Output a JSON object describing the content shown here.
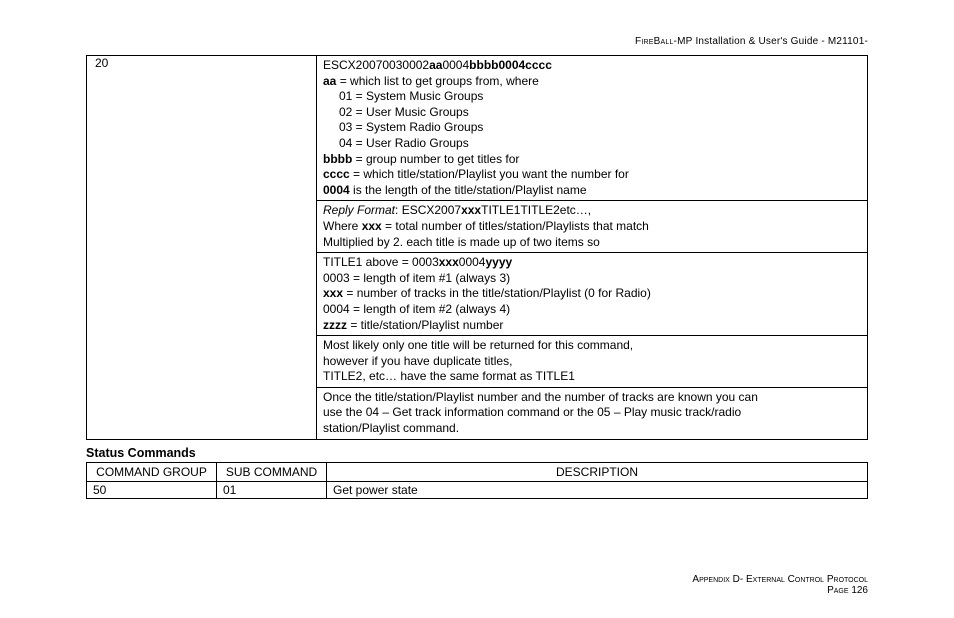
{
  "header": {
    "product": "FireBall-MP",
    "text_mid": " Installation & User's Guide - ",
    "code": "M21101-"
  },
  "table1": {
    "col1_width": 230,
    "row_cg": "20",
    "blocks": [
      {
        "lines": [
          {
            "segments": [
              {
                "t": "ESCX20070030002"
              },
              {
                "t": "aa",
                "b": true
              },
              {
                "t": "0004"
              },
              {
                "t": "bbbb0004cccc",
                "b": true
              }
            ]
          },
          {
            "segments": [
              {
                "t": "aa",
                "b": true
              },
              {
                "t": " = which list to get groups from, where"
              }
            ]
          },
          {
            "indent": 2,
            "segments": [
              {
                "t": "01 = System Music Groups"
              }
            ]
          },
          {
            "indent": 2,
            "segments": [
              {
                "t": "02 = User Music Groups"
              }
            ]
          },
          {
            "indent": 2,
            "segments": [
              {
                "t": "03 = System Radio Groups"
              }
            ]
          },
          {
            "indent": 2,
            "segments": [
              {
                "t": "04 = User Radio Groups"
              }
            ]
          },
          {
            "segments": [
              {
                "t": "bbbb",
                "b": true
              },
              {
                "t": " = group number to get titles for"
              }
            ]
          },
          {
            "segments": [
              {
                "t": "cccc",
                "b": true
              },
              {
                "t": " = which title/station/Playlist you want the number for"
              }
            ]
          },
          {
            "segments": [
              {
                "t": "0004",
                "b": true
              },
              {
                "t": " is the length of the title/station/Playlist name"
              }
            ]
          }
        ]
      },
      {
        "lines": [
          {
            "segments": [
              {
                "t": "Reply Format",
                "i": true
              },
              {
                "t": ": ESCX2007"
              },
              {
                "t": "xxx",
                "b": true
              },
              {
                "t": "TITLE1TITLE2etc…,"
              }
            ]
          },
          {
            "segments": [
              {
                "t": "Where "
              },
              {
                "t": "xxx",
                "b": true
              },
              {
                "t": " = total number of titles/station/Playlists that match"
              }
            ]
          },
          {
            "segments": [
              {
                "t": "Multiplied by 2.  each title is made up of two items so"
              }
            ]
          }
        ]
      },
      {
        "lines": [
          {
            "segments": [
              {
                "t": "TITLE1 above = 0003"
              },
              {
                "t": "xxx",
                "b": true
              },
              {
                "t": "0004"
              },
              {
                "t": "yyyy",
                "b": true
              }
            ]
          },
          {
            "segments": [
              {
                "t": "0003 = length of item #1 (always 3)"
              }
            ]
          },
          {
            "segments": [
              {
                "t": "xxx",
                "b": true
              },
              {
                "t": "  = number of tracks in the title/station/Playlist (0 for Radio)"
              }
            ]
          },
          {
            "segments": [
              {
                "t": "0004 = length of item #2 (always 4)"
              }
            ]
          },
          {
            "segments": [
              {
                "t": "zzzz",
                "b": true
              },
              {
                "t": " = title/station/Playlist number"
              }
            ]
          }
        ]
      },
      {
        "lines": [
          {
            "segments": [
              {
                "t": "Most likely only one title will be returned for this command,"
              }
            ]
          },
          {
            "segments": [
              {
                "t": "however if you have duplicate titles,"
              }
            ]
          },
          {
            "segments": [
              {
                "t": "TITLE2, etc… have the same format as TITLE1"
              }
            ]
          }
        ]
      },
      {
        "lines": [
          {
            "segments": [
              {
                "t": "Once the title/station/Playlist number and the number of tracks are known you can"
              }
            ]
          },
          {
            "segments": [
              {
                "t": "use the 04 – Get track information command or the 05 – Play music track/radio"
              }
            ]
          },
          {
            "segments": [
              {
                "t": "station/Playlist command."
              }
            ]
          }
        ]
      }
    ]
  },
  "section_title": "Status Commands",
  "table2": {
    "headers": {
      "col1": "COMMAND GROUP",
      "col2": "SUB COMMAND",
      "col3": "DESCRIPTION"
    },
    "col_widths": {
      "c1": 130,
      "c2": 110
    },
    "row": {
      "cg": "50",
      "sub": "01",
      "desc": "Get power state"
    }
  },
  "footer": {
    "line1_a": "Appendix D- ",
    "line1_b": "External Control Protocol",
    "line2_a": "Page ",
    "line2_b": "126"
  }
}
